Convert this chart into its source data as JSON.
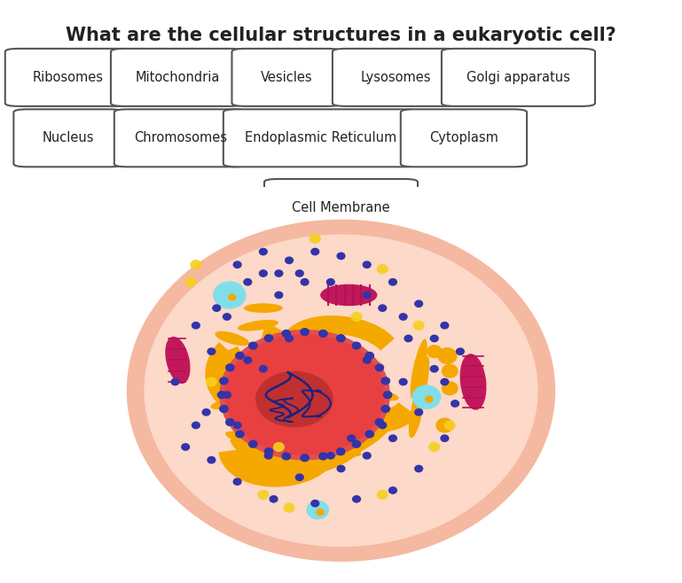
{
  "title": "What are the cellular structures in a eukaryotic cell?",
  "title_fontsize": 15,
  "title_bold": true,
  "background_color": "#ffffff",
  "cell_bg_color": "#dce8f5",
  "labels_row1": [
    "Ribosomes",
    "Mitochondria",
    "Vesicles",
    "Lysosomes",
    "Golgi apparatus"
  ],
  "labels_row2": [
    "Nucleus",
    "Chromosomes",
    "Endoplasmic Reticulum",
    "Cytoplasm"
  ],
  "labels_row3": [
    "Cell Membrane"
  ],
  "cell_outer_color": "#f5b8a0",
  "cell_inner_color": "#fcd9c8",
  "nucleus_outer_color": "#e84040",
  "nucleus_inner_color": "#c03030",
  "nucleolus_color": "#9b1a1a",
  "er_color": "#f5a800",
  "mito_color": "#c2185b",
  "mito_inner_color": "#ad1457",
  "vesicle_color": "#80deea",
  "ribosome_color": "#3333aa",
  "small_dot_color": "#f5a800",
  "chromosome_color": "#1a237e"
}
